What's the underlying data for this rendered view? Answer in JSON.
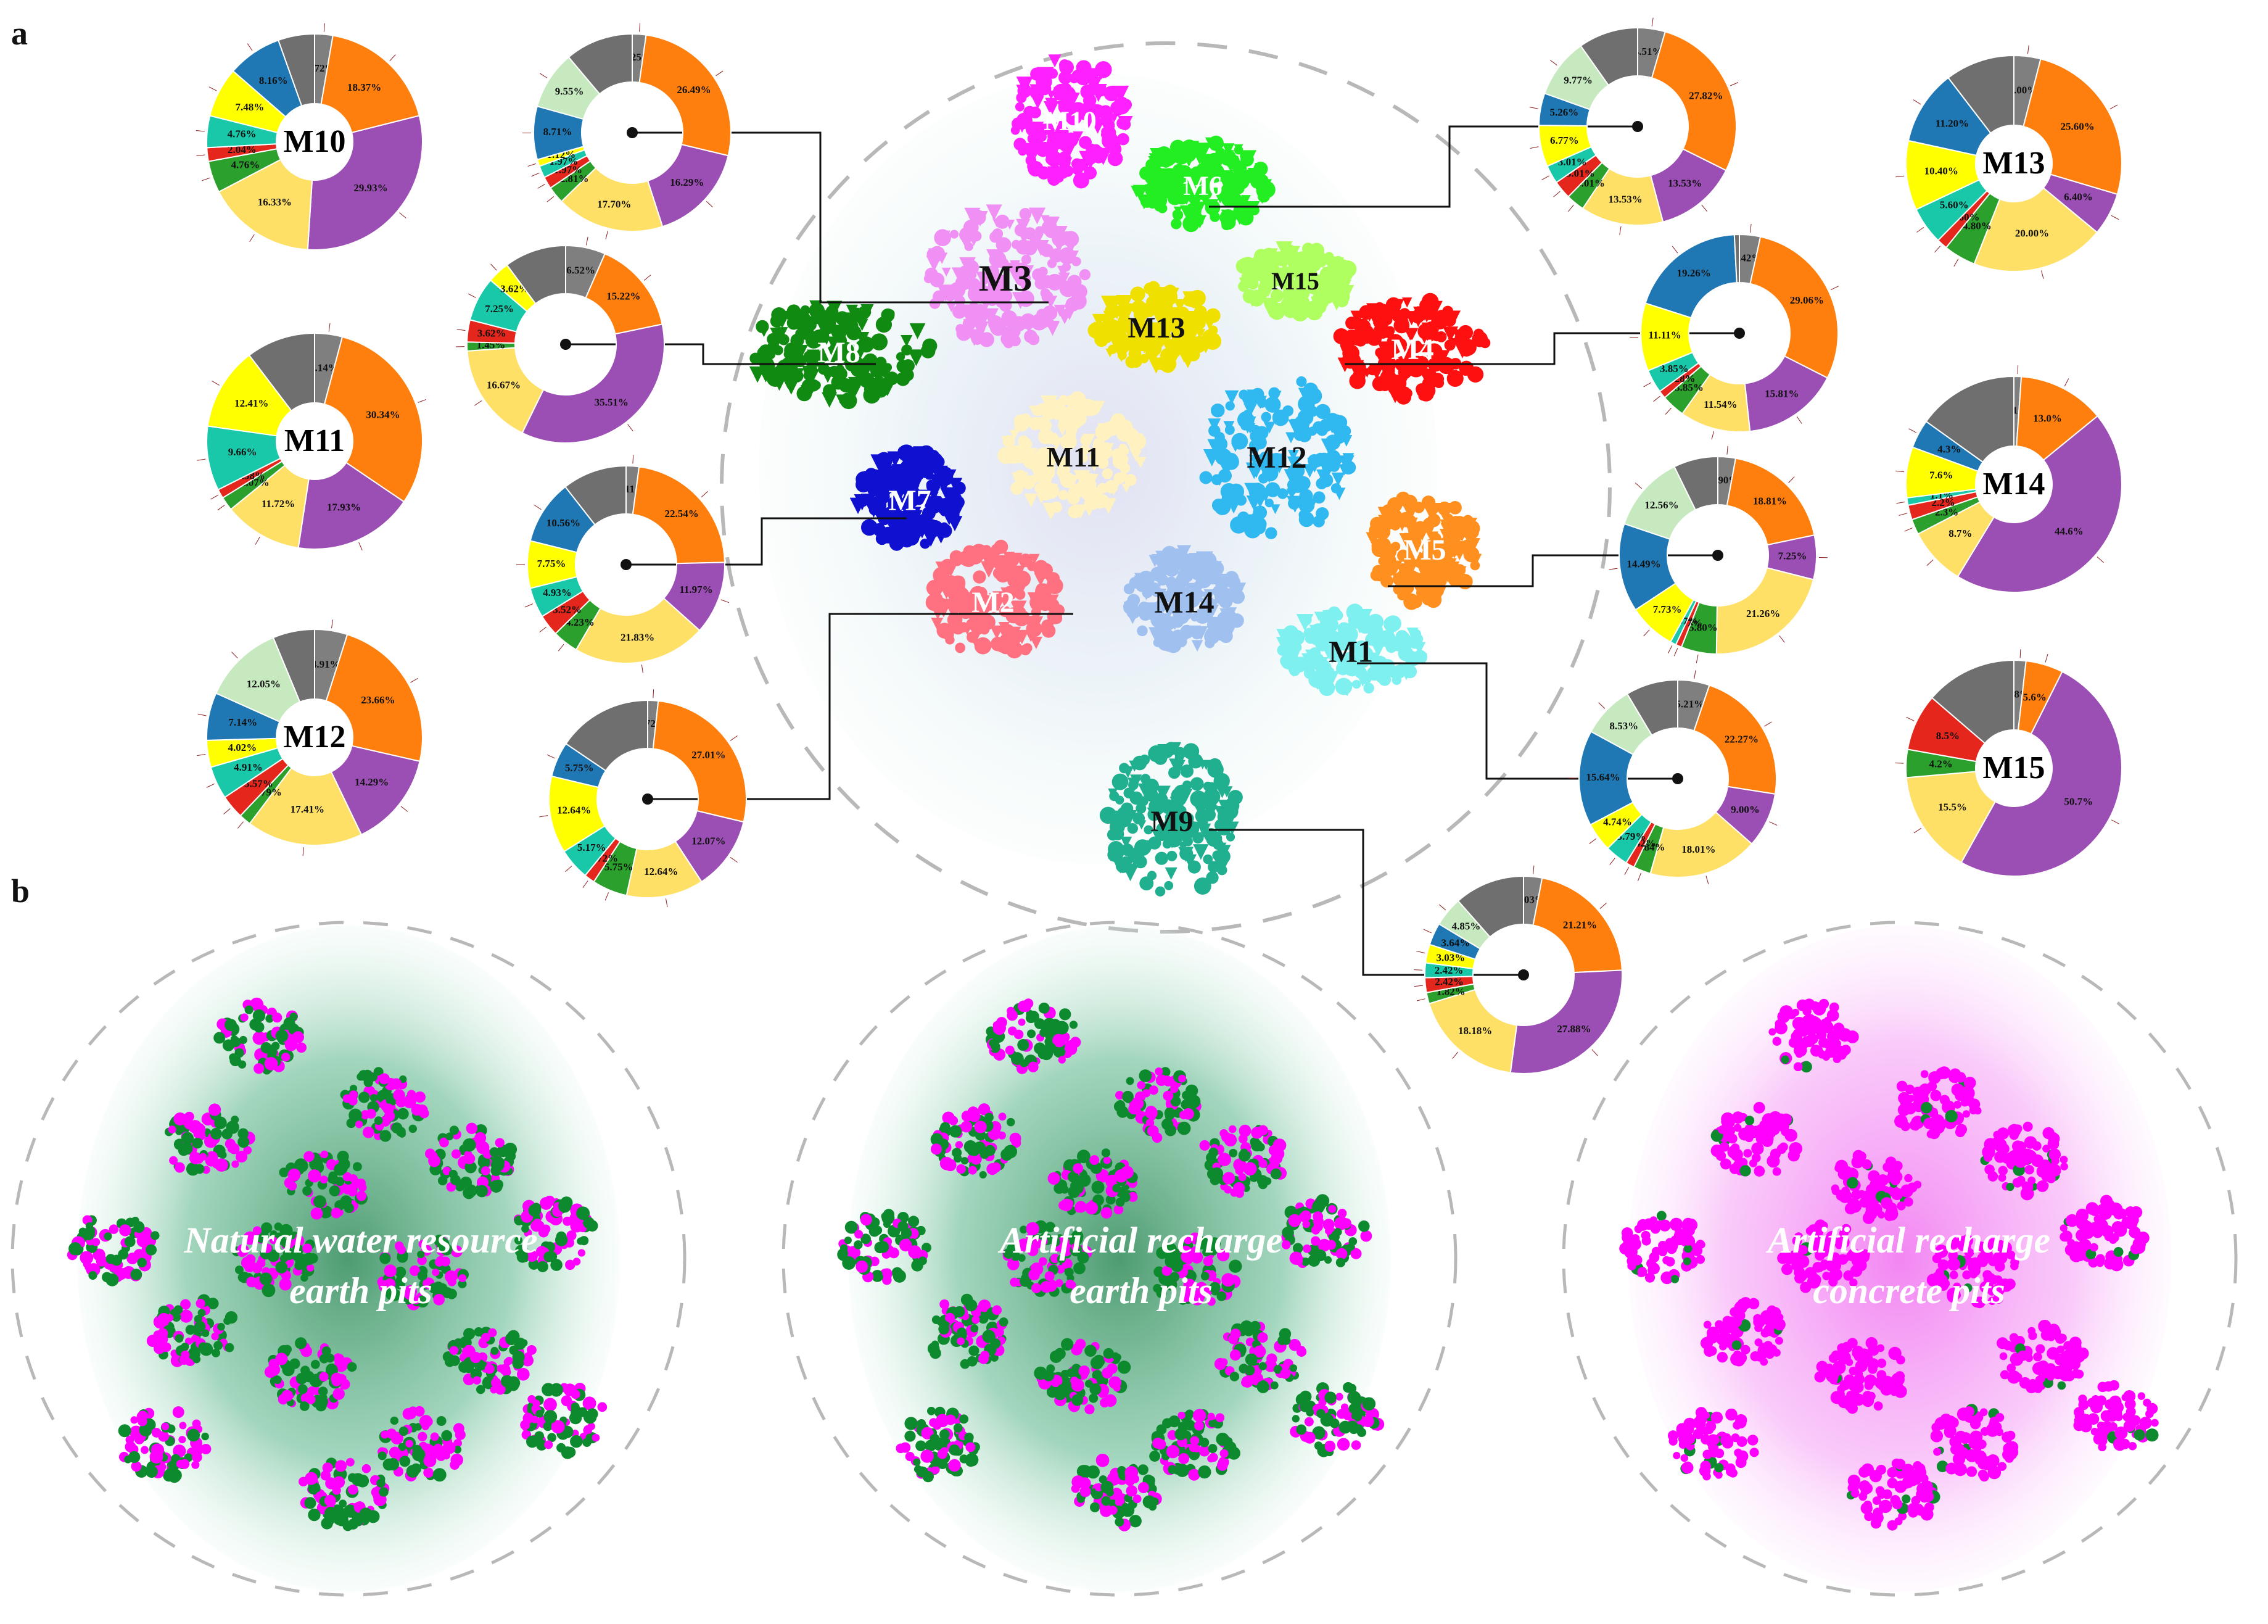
{
  "panels": {
    "a": "a",
    "b": "b"
  },
  "colors": {
    "blue": "#1f77b4",
    "orange": "#ff7f0e",
    "purple": "#9b4fb4",
    "yellow": "#ffe066",
    "brightyellow": "#ffff00",
    "green": "#2ca02c",
    "teal": "#19c8a8",
    "red": "#e4261c",
    "gray": "#7f7f7f",
    "lightgreen": "#c7e9c0",
    "darkgreen": "#0e8a2e",
    "magenta": "#ff00ff"
  },
  "modules": [
    {
      "id": "M1",
      "color": "#7ff0f0"
    },
    {
      "id": "M2",
      "color": "#ff7080"
    },
    {
      "id": "M3",
      "color": "#f090f5"
    },
    {
      "id": "M4",
      "color": "#ff1010"
    },
    {
      "id": "M5",
      "color": "#ff9020"
    },
    {
      "id": "M6",
      "color": "#22ee22"
    },
    {
      "id": "M7",
      "color": "#1010d0"
    },
    {
      "id": "M8",
      "color": "#108a10"
    },
    {
      "id": "M9",
      "color": "#20b090"
    },
    {
      "id": "M10",
      "color": "#ff20ff"
    },
    {
      "id": "M11",
      "color": "#fff2c0"
    },
    {
      "id": "M12",
      "color": "#30b8f0"
    },
    {
      "id": "M13",
      "color": "#f0e000"
    },
    {
      "id": "M14",
      "color": "#a0c0f0"
    },
    {
      "id": "M15",
      "color": "#b0ff60"
    }
  ],
  "donuts": [
    {
      "name": "M10",
      "show_center": true,
      "labels": [
        "2.72%",
        "18.37%",
        "29.93%",
        "16.33%",
        "4.76%",
        "2.04%",
        "4.76%",
        "7.48%",
        "8.16%"
      ]
    },
    {
      "name": "M11",
      "show_center": true,
      "labels": [
        "4.14%",
        "30.34%",
        "17.93%",
        "11.72%",
        "2.07%",
        "1.38%",
        "9.66%",
        "12.41%"
      ]
    },
    {
      "name": "M12",
      "show_center": true,
      "labels": [
        "4.91%",
        "23.66%",
        "14.29%",
        "17.41%",
        "1.79%",
        "3.57%",
        "4.91%",
        "4.02%",
        "7.14%",
        "12.05%"
      ]
    },
    {
      "name": "M13",
      "show_center": true,
      "labels": [
        "4.00%",
        "25.60%",
        "6.40%",
        "20.00%",
        "4.80%",
        "1.60%",
        "5.60%",
        "10.40%",
        "11.20%"
      ]
    },
    {
      "name": "M14",
      "show_center": true,
      "labels": [
        "1.1%",
        "13.0%",
        "44.6%",
        "8.7%",
        "2.3%",
        "2.2%",
        "1.1%",
        "7.6%",
        "4.3%"
      ]
    },
    {
      "name": "M15",
      "show_center": true,
      "labels": [
        "1.8%",
        "5.6%",
        "50.7%",
        "15.5%",
        "4.2%",
        "8.5%"
      ]
    },
    {
      "name": "M3",
      "show_center": false,
      "labels": [
        "2.25%",
        "26.49%",
        "16.29%",
        "17.70%",
        "2.81%",
        "1.97%",
        "1.97%",
        "1.12%",
        "8.71%",
        "9.55%"
      ]
    },
    {
      "name": "M8",
      "show_center": false,
      "labels": [
        "6.52%",
        "15.22%",
        "35.51%",
        "16.67%",
        "1.45%",
        "3.62%",
        "7.25%",
        "3.62%"
      ]
    },
    {
      "name": "M7",
      "show_center": false,
      "labels": [
        "2.11%",
        "22.54%",
        "11.97%",
        "21.83%",
        "4.23%",
        "3.52%",
        "4.93%",
        "7.75%",
        "10.56%"
      ]
    },
    {
      "name": "M2",
      "show_center": false,
      "labels": [
        "1.72%",
        "27.01%",
        "12.07%",
        "12.64%",
        "5.75%",
        "1.72%",
        "5.17%",
        "12.64%",
        "5.75%"
      ]
    },
    {
      "name": "M6",
      "show_center": false,
      "labels": [
        "4.51%",
        "27.82%",
        "13.53%",
        "13.53%",
        "3.01%",
        "3.01%",
        "3.01%",
        "6.77%",
        "5.26%",
        "9.77%"
      ]
    },
    {
      "name": "M4",
      "show_center": false,
      "labels": [
        "3.42%",
        "29.06%",
        "15.81%",
        "11.54%",
        "3.85%",
        "1.28%",
        "3.85%",
        "11.11%",
        "19.26%"
      ]
    },
    {
      "name": "M5",
      "show_center": false,
      "labels": [
        "2.90%",
        "18.81%",
        "7.25%",
        "21.26%",
        "5.80%",
        "0.97%",
        "0.97%",
        "7.73%",
        "14.49%",
        "12.56%"
      ]
    },
    {
      "name": "M1",
      "show_center": false,
      "labels": [
        "5.21%",
        "22.27%",
        "9.00%",
        "18.01%",
        "2.84%",
        "1.42%",
        "3.79%",
        "4.74%",
        "15.64%",
        "8.53%"
      ]
    },
    {
      "name": "M9",
      "show_center": false,
      "labels": [
        "3.03%",
        "21.21%",
        "27.88%",
        "18.18%",
        "1.82%",
        "2.42%",
        "2.42%",
        "3.03%",
        "3.64%",
        "4.85%"
      ]
    }
  ],
  "network_titles": [
    {
      "line1": "Natural water resource",
      "line2": "earth pits"
    },
    {
      "line1": "Artificial recharge",
      "line2": "earth pits"
    },
    {
      "line1": "Artificial recharge",
      "line2": "concrete pits"
    }
  ]
}
